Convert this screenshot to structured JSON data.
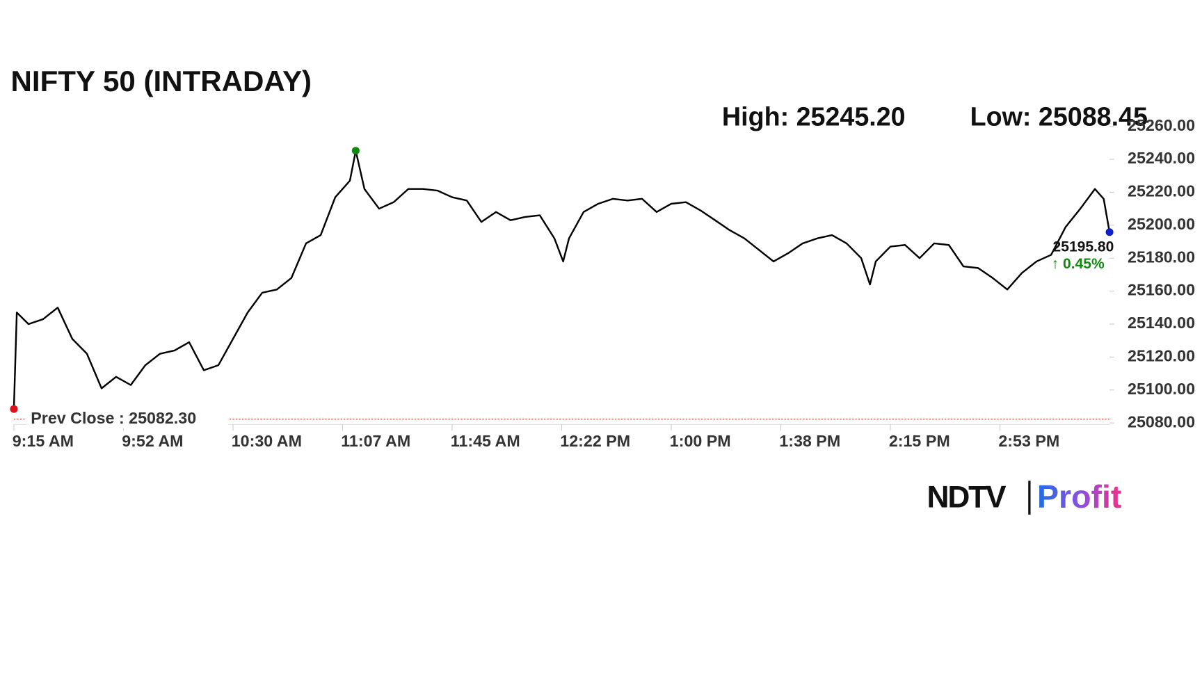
{
  "chart_data": {
    "type": "line",
    "title": "NIFTY 50 (INTRADAY)",
    "high_label": "High: 25245.20",
    "low_label": "Low: 25088.45",
    "x": [
      0,
      1,
      5,
      10,
      15,
      20,
      25,
      30,
      35,
      40,
      45,
      50,
      55,
      60,
      65,
      70,
      75,
      80,
      85,
      90,
      95,
      100,
      105,
      110,
      115,
      117,
      120,
      125,
      130,
      135,
      140,
      145,
      150,
      155,
      160,
      165,
      170,
      175,
      180,
      185,
      188,
      190,
      195,
      200,
      205,
      210,
      215,
      220,
      225,
      230,
      235,
      240,
      245,
      250,
      255,
      260,
      265,
      270,
      275,
      280,
      285,
      290,
      293,
      295,
      300,
      305,
      310,
      315,
      320,
      325,
      330,
      335,
      340,
      345,
      350,
      355,
      360,
      365,
      370,
      373,
      375
    ],
    "series": [
      {
        "name": "NIFTY 50",
        "color": "#000000",
        "values": [
          25088.45,
          25147,
          25140,
          25143,
          25150,
          25131,
          25122,
          25101,
          25108,
          25103,
          25115,
          25122,
          25124,
          25129,
          25112,
          25115,
          25131,
          25147,
          25159,
          25161,
          25168,
          25189,
          25194,
          25217,
          25227,
          25245.2,
          25222,
          25210,
          25214,
          25222,
          25222,
          25221,
          25217,
          25215,
          25202,
          25208,
          25203,
          25205,
          25206,
          25192,
          25178,
          25192,
          25208,
          25213,
          25216,
          25215,
          25216,
          25208,
          25213,
          25214,
          25209,
          25203,
          25197,
          25192,
          25185,
          25178,
          25183,
          25189,
          25192,
          25194,
          25189,
          25180,
          25164,
          25178,
          25187,
          25188,
          25180,
          25189,
          25188,
          25175,
          25174,
          25168,
          25161,
          25171,
          25178,
          25182,
          25199,
          25210,
          25222,
          25216,
          25195.8
        ]
      }
    ],
    "high_marker": {
      "color": "#118811",
      "index": 25
    },
    "low_marker": {
      "color": "#e0101a",
      "index": 0
    },
    "last_marker": {
      "color": "#1020c8",
      "index": 80
    },
    "last_label": "25195.80",
    "change_label": "↑ 0.45%",
    "prev_close": {
      "label": "Prev Close : 25082.30",
      "value": 25082.3,
      "color": "#c0392b"
    },
    "xlim": [
      0,
      375
    ],
    "xticks": [
      {
        "value": 0,
        "label": "9:15 AM"
      },
      {
        "value": 37.5,
        "label": "9:52 AM"
      },
      {
        "value": 75,
        "label": "10:30 AM"
      },
      {
        "value": 112.5,
        "label": "11:07 AM"
      },
      {
        "value": 150,
        "label": "11:45 AM"
      },
      {
        "value": 187.5,
        "label": "12:22 PM"
      },
      {
        "value": 225,
        "label": "1:00 PM"
      },
      {
        "value": 262.5,
        "label": "1:38 PM"
      },
      {
        "value": 300,
        "label": "2:15 PM"
      },
      {
        "value": 337.5,
        "label": "2:53 PM"
      }
    ],
    "ylim": [
      25080,
      25260
    ],
    "yticks": [
      {
        "value": 25080,
        "label": "25080.00"
      },
      {
        "value": 25100,
        "label": "25100.00"
      },
      {
        "value": 25120,
        "label": "25120.00"
      },
      {
        "value": 25140,
        "label": "25140.00"
      },
      {
        "value": 25160,
        "label": "25160.00"
      },
      {
        "value": 25180,
        "label": "25180.00"
      },
      {
        "value": 25200,
        "label": "25200.00"
      },
      {
        "value": 25220,
        "label": "25220.00"
      },
      {
        "value": 25240,
        "label": "25240.00"
      },
      {
        "value": 25260,
        "label": "25260.00"
      }
    ],
    "brand": [
      "NDTV",
      "Profit"
    ]
  }
}
